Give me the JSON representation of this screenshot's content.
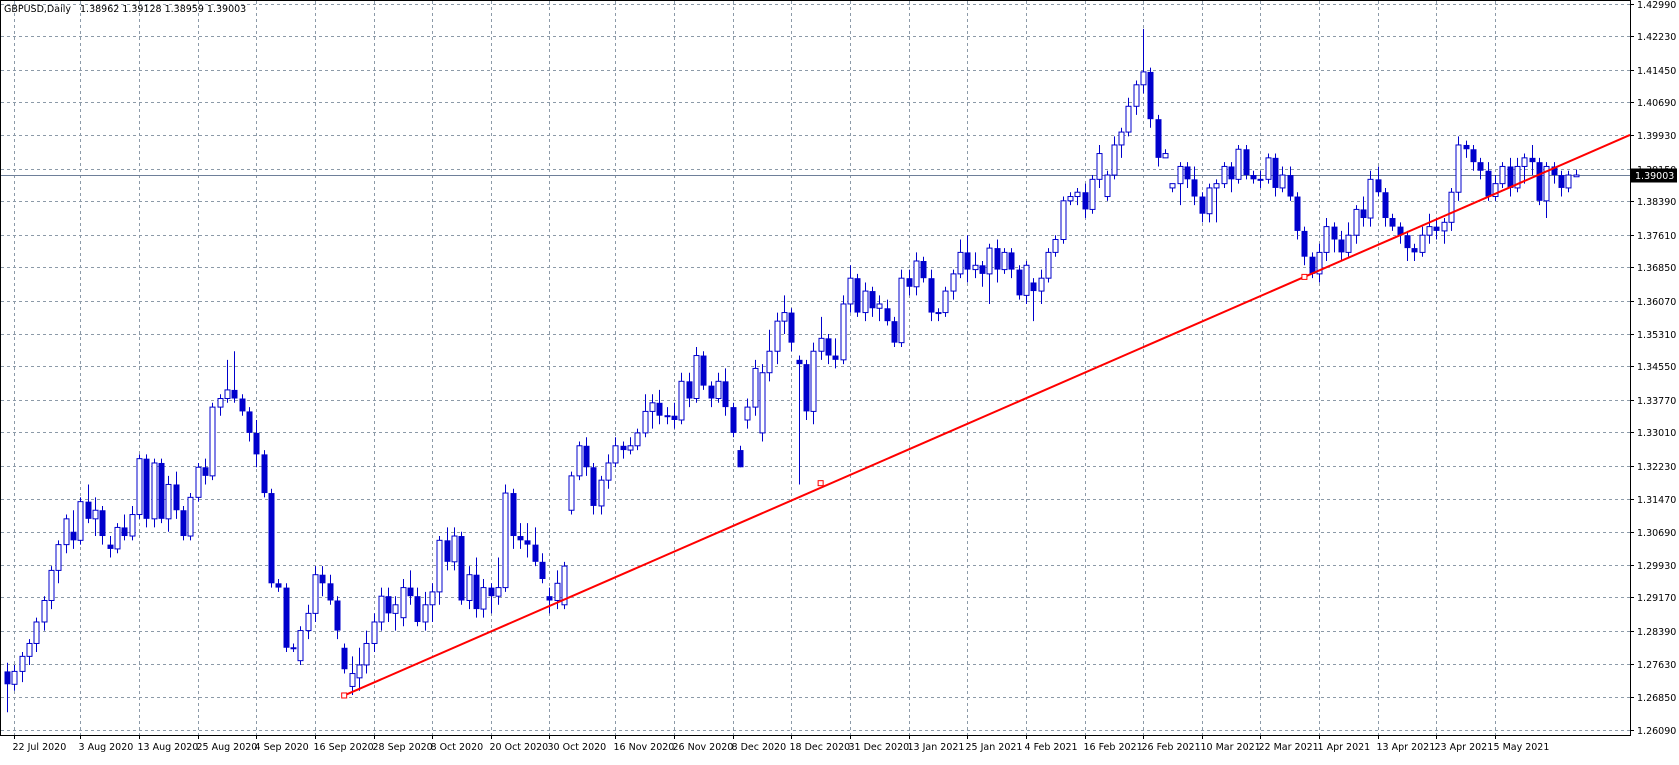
{
  "header": {
    "symbol": "GBPUSD,Daily",
    "ohlc": "1.38962 1.39128 1.38959 1.39003"
  },
  "colors": {
    "background": "#ffffff",
    "grid": "#8c9aa8",
    "candle": "#0000cc",
    "trendline": "#ff0000",
    "price_line": "#6e7f99",
    "price_label_bg": "#000000",
    "price_label_text": "#ffffff"
  },
  "chart_data": {
    "type": "candlestick",
    "symbol": "GBPUSD",
    "timeframe": "Daily",
    "last_price": 1.39003,
    "last_price_label": "1.39003",
    "grid": true,
    "y_range": [
      1.2597,
      1.4305
    ],
    "y_ticks": [
      "1.42990",
      "1.42230",
      "1.41450",
      "1.40690",
      "1.39930",
      "1.39150",
      "1.38390",
      "1.37610",
      "1.36850",
      "1.36070",
      "1.35310",
      "1.34550",
      "1.33770",
      "1.33010",
      "1.32230",
      "1.31470",
      "1.30690",
      "1.29930",
      "1.29170",
      "1.28390",
      "1.27630",
      "1.26850",
      "1.26090"
    ],
    "x_ticks": [
      {
        "label": "22 Jul 2020",
        "index": 1
      },
      {
        "label": "3 Aug 2020",
        "index": 10
      },
      {
        "label": "13 Aug 2020",
        "index": 18
      },
      {
        "label": "25 Aug 2020",
        "index": 26
      },
      {
        "label": "4 Sep 2020",
        "index": 34
      },
      {
        "label": "16 Sep 2020",
        "index": 42
      },
      {
        "label": "28 Sep 2020",
        "index": 50
      },
      {
        "label": "8 Oct 2020",
        "index": 58
      },
      {
        "label": "20 Oct 2020",
        "index": 66
      },
      {
        "label": "30 Oct 2020",
        "index": 74
      },
      {
        "label": "16 Nov 2020",
        "index": 83
      },
      {
        "label": "26 Nov 2020",
        "index": 91
      },
      {
        "label": "8 Dec 2020",
        "index": 99
      },
      {
        "label": "18 Dec 2020",
        "index": 107
      },
      {
        "label": "31 Dec 2020",
        "index": 115
      },
      {
        "label": "13 Jan 2021",
        "index": 123
      },
      {
        "label": "25 Jan 2021",
        "index": 131
      },
      {
        "label": "4 Feb 2021",
        "index": 139
      },
      {
        "label": "16 Feb 2021",
        "index": 147
      },
      {
        "label": "26 Feb 2021",
        "index": 155
      },
      {
        "label": "10 Mar 2021",
        "index": 163
      },
      {
        "label": "22 Mar 2021",
        "index": 171
      },
      {
        "label": "1 Apr 2021",
        "index": 179
      },
      {
        "label": "13 Apr 2021",
        "index": 187
      },
      {
        "label": "23 Apr 2021",
        "index": 195
      },
      {
        "label": "5 May 2021",
        "index": 203
      }
    ],
    "trendline": {
      "points": [
        {
          "index": 46,
          "price": 1.2689
        },
        {
          "index": 111,
          "price": 1.3183
        },
        {
          "index": 177,
          "price": 1.3663
        }
      ]
    },
    "candles": [
      [
        1.2745,
        1.2765,
        1.265,
        1.2715
      ],
      [
        1.2715,
        1.276,
        1.27,
        1.2745
      ],
      [
        1.2745,
        1.279,
        1.272,
        1.278
      ],
      [
        1.278,
        1.282,
        1.276,
        1.281
      ],
      [
        1.281,
        1.287,
        1.279,
        1.286
      ],
      [
        1.286,
        1.292,
        1.284,
        1.291
      ],
      [
        1.291,
        1.299,
        1.289,
        1.298
      ],
      [
        1.298,
        1.305,
        1.295,
        1.304
      ],
      [
        1.304,
        1.311,
        1.302,
        1.31
      ],
      [
        1.307,
        1.312,
        1.303,
        1.305
      ],
      [
        1.305,
        1.315,
        1.304,
        1.314
      ],
      [
        1.314,
        1.318,
        1.309,
        1.31
      ],
      [
        1.31,
        1.315,
        1.306,
        1.312
      ],
      [
        1.312,
        1.313,
        1.304,
        1.306
      ],
      [
        1.304,
        1.306,
        1.301,
        1.303
      ],
      [
        1.303,
        1.309,
        1.302,
        1.308
      ],
      [
        1.308,
        1.311,
        1.305,
        1.306
      ],
      [
        1.306,
        1.313,
        1.305,
        1.311
      ],
      [
        1.311,
        1.325,
        1.31,
        1.324
      ],
      [
        1.324,
        1.325,
        1.308,
        1.31
      ],
      [
        1.31,
        1.324,
        1.308,
        1.323
      ],
      [
        1.323,
        1.324,
        1.309,
        1.31
      ],
      [
        1.31,
        1.32,
        1.307,
        1.318
      ],
      [
        1.318,
        1.321,
        1.31,
        1.312
      ],
      [
        1.312,
        1.313,
        1.305,
        1.306
      ],
      [
        1.306,
        1.316,
        1.305,
        1.315
      ],
      [
        1.315,
        1.323,
        1.314,
        1.322
      ],
      [
        1.322,
        1.324,
        1.318,
        1.32
      ],
      [
        1.32,
        1.337,
        1.319,
        1.336
      ],
      [
        1.336,
        1.339,
        1.334,
        1.338
      ],
      [
        1.338,
        1.347,
        1.337,
        1.34
      ],
      [
        1.34,
        1.349,
        1.337,
        1.338
      ],
      [
        1.338,
        1.339,
        1.334,
        1.335
      ],
      [
        1.335,
        1.336,
        1.328,
        1.33
      ],
      [
        1.33,
        1.333,
        1.322,
        1.325
      ],
      [
        1.325,
        1.326,
        1.315,
        1.316
      ],
      [
        1.316,
        1.317,
        1.294,
        1.295
      ],
      [
        1.295,
        1.296,
        1.293,
        1.294
      ],
      [
        1.294,
        1.295,
        1.279,
        1.28
      ],
      [
        1.28,
        1.281,
        1.279,
        1.28
      ],
      [
        1.277,
        1.285,
        1.276,
        1.284
      ],
      [
        1.284,
        1.29,
        1.282,
        1.288
      ],
      [
        1.288,
        1.299,
        1.286,
        1.297
      ],
      [
        1.297,
        1.299,
        1.292,
        1.295
      ],
      [
        1.295,
        1.297,
        1.29,
        1.291
      ],
      [
        1.291,
        1.292,
        1.282,
        1.284
      ],
      [
        1.28,
        1.281,
        1.274,
        1.275
      ],
      [
        1.271,
        1.278,
        1.269,
        1.274
      ],
      [
        1.273,
        1.28,
        1.27,
        1.276
      ],
      [
        1.276,
        1.284,
        1.274,
        1.281
      ],
      [
        1.281,
        1.288,
        1.279,
        1.286
      ],
      [
        1.286,
        1.294,
        1.284,
        1.292
      ],
      [
        1.292,
        1.294,
        1.286,
        1.288
      ],
      [
        1.288,
        1.292,
        1.284,
        1.29
      ],
      [
        1.287,
        1.296,
        1.285,
        1.294
      ],
      [
        1.294,
        1.298,
        1.29,
        1.292
      ],
      [
        1.292,
        1.294,
        1.285,
        1.286
      ],
      [
        1.286,
        1.293,
        1.284,
        1.29
      ],
      [
        1.29,
        1.295,
        1.286,
        1.293
      ],
      [
        1.293,
        1.306,
        1.29,
        1.305
      ],
      [
        1.305,
        1.308,
        1.298,
        1.3
      ],
      [
        1.3,
        1.308,
        1.298,
        1.306
      ],
      [
        1.306,
        1.307,
        1.29,
        1.291
      ],
      [
        1.291,
        1.299,
        1.289,
        1.297
      ],
      [
        1.297,
        1.301,
        1.287,
        1.289
      ],
      [
        1.289,
        1.296,
        1.287,
        1.294
      ],
      [
        1.294,
        1.295,
        1.288,
        1.292
      ],
      [
        1.292,
        1.301,
        1.29,
        1.294
      ],
      [
        1.294,
        1.318,
        1.293,
        1.316
      ],
      [
        1.316,
        1.317,
        1.303,
        1.306
      ],
      [
        1.306,
        1.309,
        1.303,
        1.305
      ],
      [
        1.305,
        1.309,
        1.301,
        1.304
      ],
      [
        1.304,
        1.308,
        1.299,
        1.3
      ],
      [
        1.3,
        1.302,
        1.295,
        1.296
      ],
      [
        1.292,
        1.294,
        1.288,
        1.291
      ],
      [
        1.291,
        1.298,
        1.289,
        1.295
      ],
      [
        1.29,
        1.3,
        1.289,
        1.299
      ],
      [
        1.312,
        1.321,
        1.311,
        1.32
      ],
      [
        1.32,
        1.328,
        1.319,
        1.327
      ],
      [
        1.327,
        1.329,
        1.32,
        1.322
      ],
      [
        1.322,
        1.323,
        1.311,
        1.313
      ],
      [
        1.313,
        1.32,
        1.311,
        1.319
      ],
      [
        1.319,
        1.325,
        1.317,
        1.323
      ],
      [
        1.323,
        1.329,
        1.322,
        1.327
      ],
      [
        1.327,
        1.328,
        1.324,
        1.326
      ],
      [
        1.326,
        1.329,
        1.325,
        1.327
      ],
      [
        1.327,
        1.331,
        1.326,
        1.33
      ],
      [
        1.33,
        1.339,
        1.329,
        1.335
      ],
      [
        1.335,
        1.339,
        1.331,
        1.337
      ],
      [
        1.337,
        1.34,
        1.332,
        1.334
      ],
      [
        1.334,
        1.336,
        1.332,
        1.334
      ],
      [
        1.334,
        1.337,
        1.331,
        1.333
      ],
      [
        1.333,
        1.344,
        1.332,
        1.342
      ],
      [
        1.342,
        1.344,
        1.336,
        1.338
      ],
      [
        1.338,
        1.35,
        1.337,
        1.348
      ],
      [
        1.348,
        1.349,
        1.34,
        1.341
      ],
      [
        1.341,
        1.342,
        1.336,
        1.338
      ],
      [
        1.338,
        1.344,
        1.337,
        1.342
      ],
      [
        1.342,
        1.345,
        1.334,
        1.336
      ],
      [
        1.336,
        1.337,
        1.329,
        1.33
      ],
      [
        1.326,
        1.327,
        1.322,
        1.322
      ],
      [
        1.333,
        1.338,
        1.331,
        1.336
      ],
      [
        1.336,
        1.347,
        1.334,
        1.345
      ],
      [
        1.33,
        1.346,
        1.328,
        1.344
      ],
      [
        1.344,
        1.354,
        1.342,
        1.349
      ],
      [
        1.349,
        1.358,
        1.346,
        1.356
      ],
      [
        1.356,
        1.362,
        1.353,
        1.358
      ],
      [
        1.358,
        1.359,
        1.349,
        1.351
      ],
      [
        1.347,
        1.348,
        1.318,
        1.346
      ],
      [
        1.346,
        1.347,
        1.333,
        1.335
      ],
      [
        1.335,
        1.351,
        1.332,
        1.349
      ],
      [
        1.349,
        1.357,
        1.347,
        1.352
      ],
      [
        1.352,
        1.353,
        1.346,
        1.348
      ],
      [
        1.348,
        1.352,
        1.345,
        1.347
      ],
      [
        1.347,
        1.362,
        1.346,
        1.36
      ],
      [
        1.36,
        1.369,
        1.358,
        1.366
      ],
      [
        1.366,
        1.367,
        1.357,
        1.358
      ],
      [
        1.358,
        1.365,
        1.356,
        1.363
      ],
      [
        1.363,
        1.364,
        1.357,
        1.359
      ],
      [
        1.359,
        1.362,
        1.356,
        1.36
      ],
      [
        1.359,
        1.361,
        1.355,
        1.356
      ],
      [
        1.356,
        1.357,
        1.35,
        1.351
      ],
      [
        1.351,
        1.368,
        1.35,
        1.366
      ],
      [
        1.366,
        1.368,
        1.362,
        1.364
      ],
      [
        1.364,
        1.372,
        1.362,
        1.37
      ],
      [
        1.37,
        1.371,
        1.365,
        1.366
      ],
      [
        1.366,
        1.368,
        1.356,
        1.358
      ],
      [
        1.358,
        1.359,
        1.356,
        1.358
      ],
      [
        1.358,
        1.364,
        1.357,
        1.363
      ],
      [
        1.363,
        1.368,
        1.361,
        1.367
      ],
      [
        1.367,
        1.375,
        1.366,
        1.372
      ],
      [
        1.372,
        1.376,
        1.365,
        1.368
      ],
      [
        1.368,
        1.372,
        1.366,
        1.369
      ],
      [
        1.369,
        1.37,
        1.364,
        1.367
      ],
      [
        1.367,
        1.374,
        1.36,
        1.373
      ],
      [
        1.373,
        1.375,
        1.365,
        1.368
      ],
      [
        1.368,
        1.373,
        1.367,
        1.372
      ],
      [
        1.372,
        1.373,
        1.366,
        1.368
      ],
      [
        1.368,
        1.369,
        1.361,
        1.362
      ],
      [
        1.362,
        1.37,
        1.36,
        1.369
      ],
      [
        1.365,
        1.366,
        1.356,
        1.363
      ],
      [
        1.363,
        1.368,
        1.36,
        1.366
      ],
      [
        1.366,
        1.373,
        1.365,
        1.372
      ],
      [
        1.372,
        1.376,
        1.371,
        1.375
      ],
      [
        1.375,
        1.385,
        1.374,
        1.384
      ],
      [
        1.384,
        1.386,
        1.383,
        1.385
      ],
      [
        1.385,
        1.387,
        1.383,
        1.386
      ],
      [
        1.386,
        1.388,
        1.38,
        1.382
      ],
      [
        1.382,
        1.39,
        1.381,
        1.389
      ],
      [
        1.389,
        1.397,
        1.387,
        1.395
      ],
      [
        1.385,
        1.391,
        1.384,
        1.39
      ],
      [
        1.39,
        1.399,
        1.389,
        1.397
      ],
      [
        1.397,
        1.401,
        1.394,
        1.4
      ],
      [
        1.4,
        1.408,
        1.399,
        1.406
      ],
      [
        1.406,
        1.412,
        1.404,
        1.411
      ],
      [
        1.411,
        1.424,
        1.409,
        1.414
      ],
      [
        1.414,
        1.415,
        1.401,
        1.403
      ],
      [
        1.403,
        1.404,
        1.392,
        1.394
      ],
      [
        1.394,
        1.396,
        1.394,
        1.395
      ],
      [
        1.387,
        1.388,
        1.386,
        1.388
      ],
      [
        1.388,
        1.393,
        1.383,
        1.392
      ],
      [
        1.392,
        1.393,
        1.387,
        1.389
      ],
      [
        1.389,
        1.392,
        1.383,
        1.385
      ],
      [
        1.385,
        1.386,
        1.379,
        1.381
      ],
      [
        1.381,
        1.388,
        1.379,
        1.387
      ],
      [
        1.387,
        1.389,
        1.379,
        1.388
      ],
      [
        1.388,
        1.393,
        1.387,
        1.392
      ],
      [
        1.392,
        1.393,
        1.386,
        1.389
      ],
      [
        1.389,
        1.397,
        1.388,
        1.396
      ],
      [
        1.396,
        1.397,
        1.389,
        1.39
      ],
      [
        1.39,
        1.391,
        1.388,
        1.389
      ],
      [
        1.389,
        1.391,
        1.387,
        1.389
      ],
      [
        1.389,
        1.395,
        1.388,
        1.394
      ],
      [
        1.394,
        1.395,
        1.385,
        1.387
      ],
      [
        1.387,
        1.392,
        1.386,
        1.39
      ],
      [
        1.39,
        1.392,
        1.384,
        1.385
      ],
      [
        1.385,
        1.386,
        1.375,
        1.377
      ],
      [
        1.377,
        1.378,
        1.369,
        1.371
      ],
      [
        1.371,
        1.372,
        1.366,
        1.367
      ],
      [
        1.367,
        1.374,
        1.365,
        1.372
      ],
      [
        1.372,
        1.38,
        1.37,
        1.378
      ],
      [
        1.378,
        1.379,
        1.372,
        1.375
      ],
      [
        1.375,
        1.377,
        1.37,
        1.372
      ],
      [
        1.372,
        1.379,
        1.371,
        1.376
      ],
      [
        1.376,
        1.383,
        1.374,
        1.382
      ],
      [
        1.382,
        1.385,
        1.378,
        1.38
      ],
      [
        1.38,
        1.391,
        1.378,
        1.389
      ],
      [
        1.389,
        1.392,
        1.385,
        1.386
      ],
      [
        1.386,
        1.387,
        1.378,
        1.38
      ],
      [
        1.38,
        1.381,
        1.377,
        1.378
      ],
      [
        1.378,
        1.379,
        1.374,
        1.376
      ],
      [
        1.376,
        1.377,
        1.37,
        1.373
      ],
      [
        1.373,
        1.374,
        1.37,
        1.372
      ],
      [
        1.372,
        1.378,
        1.371,
        1.376
      ],
      [
        1.376,
        1.381,
        1.374,
        1.378
      ],
      [
        1.378,
        1.38,
        1.375,
        1.377
      ],
      [
        1.377,
        1.38,
        1.374,
        1.379
      ],
      [
        1.379,
        1.387,
        1.377,
        1.386
      ],
      [
        1.386,
        1.399,
        1.384,
        1.397
      ],
      [
        1.397,
        1.398,
        1.394,
        1.396
      ],
      [
        1.396,
        1.397,
        1.391,
        1.393
      ],
      [
        1.393,
        1.394,
        1.389,
        1.391
      ],
      [
        1.391,
        1.393,
        1.384,
        1.385
      ],
      [
        1.385,
        1.39,
        1.384,
        1.388
      ],
      [
        1.388,
        1.393,
        1.387,
        1.392
      ],
      [
        1.392,
        1.394,
        1.385,
        1.387
      ],
      [
        1.387,
        1.394,
        1.386,
        1.392
      ],
      [
        1.392,
        1.395,
        1.388,
        1.394
      ],
      [
        1.394,
        1.397,
        1.39,
        1.393
      ],
      [
        1.393,
        1.394,
        1.383,
        1.384
      ],
      [
        1.384,
        1.393,
        1.38,
        1.392
      ],
      [
        1.392,
        1.393,
        1.388,
        1.39
      ],
      [
        1.39,
        1.391,
        1.385,
        1.387
      ],
      [
        1.387,
        1.391,
        1.386,
        1.39
      ],
      [
        1.3896,
        1.3913,
        1.3896,
        1.39
      ]
    ]
  }
}
